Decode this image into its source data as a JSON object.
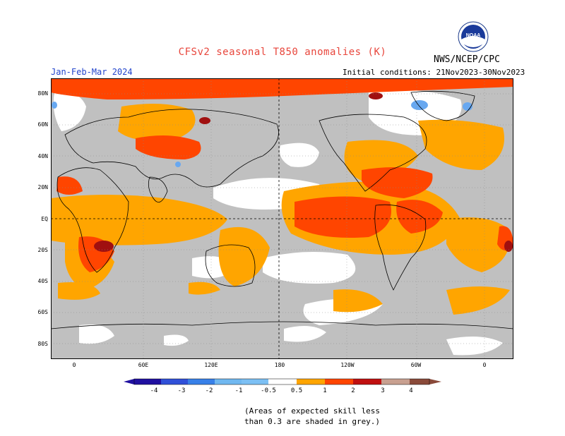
{
  "header": {
    "title": "CFSv2 seasonal T850 anomalies (K)",
    "agency": "NWS/NCEP/CPC",
    "period": "Jan-Feb-Mar 2024",
    "initial_conditions": "Initial conditions: 21Nov2023-30Nov2023",
    "logo_text": "NOAA"
  },
  "map": {
    "lat_labels": [
      "80N",
      "60N",
      "40N",
      "20N",
      "EQ",
      "20S",
      "40S",
      "60S",
      "80S"
    ],
    "lon_labels": [
      "0",
      "60E",
      "120E",
      "180",
      "120W",
      "60W",
      "0"
    ],
    "colors": {
      "grey": "#c0c0c0",
      "white": "#ffffff",
      "orange": "#ffa500",
      "red_orange": "#ff4500",
      "dark_red": "#a01010",
      "light_blue": "#68a8f0"
    }
  },
  "colorbar": {
    "labels": [
      "-4",
      "-3",
      "-2",
      "-1",
      "-0.5",
      "0.5",
      "1",
      "2",
      "3",
      "4"
    ],
    "colors": [
      "#2010a0",
      "#3050d8",
      "#3880e8",
      "#70b8f0",
      "#ffffff",
      "#ffa500",
      "#ff4500",
      "#c01010",
      "#c8a090",
      "#8a4a3a"
    ]
  },
  "footnote": {
    "line1": "(Areas of expected skill less",
    "line2": "than 0.3 are shaded in grey.)"
  }
}
